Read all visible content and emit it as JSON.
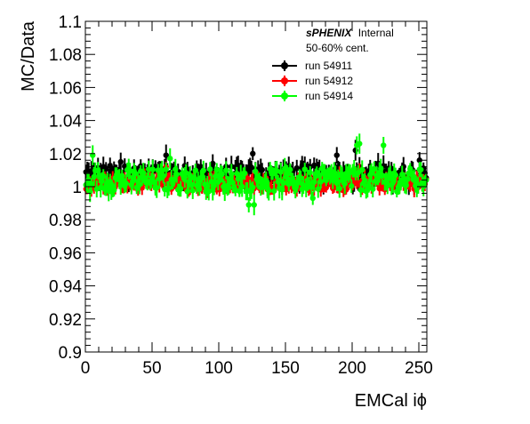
{
  "chart_data": {
    "type": "scatter",
    "xlabel": "EMCal iϕ",
    "ylabel": "MC/Data",
    "xlim": [
      0,
      256
    ],
    "ylim": [
      0.9,
      1.1
    ],
    "x_ticks": [
      0,
      50,
      100,
      150,
      200,
      250
    ],
    "x_tick_labels": [
      "0",
      "50",
      "100",
      "150",
      "200",
      "250"
    ],
    "y_ticks": [
      0.9,
      0.92,
      0.94,
      0.96,
      0.98,
      1,
      1.02,
      1.04,
      1.06,
      1.08,
      1.1
    ],
    "y_tick_labels": [
      "0.9",
      "0.92",
      "0.94",
      "0.96",
      "0.98",
      "1",
      "1.02",
      "1.04",
      "1.06",
      "1.08",
      "1.1"
    ],
    "grid": false,
    "legend_position": "top-right",
    "annotations": {
      "experiment": "sPHENIX",
      "status": "Internal",
      "centrality": "50-60% cent."
    },
    "series": [
      {
        "name": "run 54911",
        "color": "#000000",
        "center": 1.007,
        "amplitude": 0.006,
        "error": 0.005,
        "n_points": 256,
        "highlights": [
          [
            26,
            1.015
          ],
          [
            60,
            1.019
          ],
          [
            95,
            1.014
          ],
          [
            125,
            1.02
          ],
          [
            188,
            1.019
          ],
          [
            202,
            1.022
          ],
          [
            219,
            1.014
          ],
          [
            250,
            1.016
          ]
        ]
      },
      {
        "name": "run 54912",
        "color": "#ff0000",
        "center": 1.002,
        "amplitude": 0.004,
        "error": 0.004,
        "n_points": 256,
        "highlights": [
          [
            60,
            1.012
          ],
          [
            190,
            1.008
          ],
          [
            205,
            1.01
          ]
        ]
      },
      {
        "name": "run 54914",
        "color": "#00ff00",
        "center": 1.004,
        "amplitude": 0.007,
        "error": 0.005,
        "n_points": 256,
        "highlights": [
          [
            5,
            1.019
          ],
          [
            63,
            1.017
          ],
          [
            122,
            0.989
          ],
          [
            126,
            0.989
          ],
          [
            170,
            0.993
          ],
          [
            203,
            1.025
          ],
          [
            205,
            1.026
          ],
          [
            223,
            1.025
          ],
          [
            228,
            1.008
          ],
          [
            255,
            1.004
          ]
        ]
      }
    ]
  }
}
